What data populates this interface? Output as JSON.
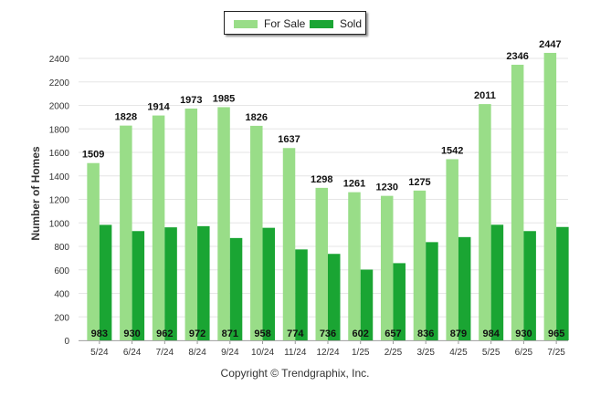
{
  "chart_data": {
    "type": "bar",
    "categories": [
      "5/24",
      "6/24",
      "7/24",
      "8/24",
      "9/24",
      "10/24",
      "11/24",
      "12/24",
      "1/25",
      "2/25",
      "3/25",
      "4/25",
      "5/25",
      "6/25",
      "7/25"
    ],
    "series": [
      {
        "name": "For Sale",
        "color": "#99dd88",
        "values": [
          1509,
          1828,
          1914,
          1973,
          1985,
          1826,
          1637,
          1298,
          1261,
          1230,
          1275,
          1542,
          2011,
          2346,
          2447
        ]
      },
      {
        "name": "Sold",
        "color": "#1aa533",
        "values": [
          983,
          930,
          962,
          972,
          871,
          958,
          774,
          736,
          602,
          657,
          836,
          879,
          984,
          930,
          965
        ]
      }
    ],
    "ylabel": "Number of Homes",
    "xlabel": "",
    "ylim": [
      0,
      2400
    ],
    "yticks": [
      0,
      200,
      400,
      600,
      800,
      1000,
      1200,
      1400,
      1600,
      1800,
      2000,
      2200,
      2400
    ],
    "grid": true,
    "legend_position": "top-center"
  },
  "legend": {
    "for_sale_label": "For Sale",
    "sold_label": "Sold"
  },
  "footer": {
    "copyright": "Copyright © Trendgraphix, Inc."
  }
}
